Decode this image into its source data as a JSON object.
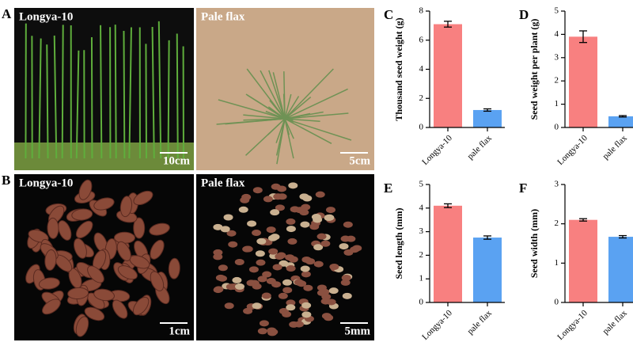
{
  "photo_panels": [
    {
      "panel": "A",
      "left_label": "Longya-10",
      "right_label": "Pale flax",
      "left_scale": "10cm",
      "right_scale": "5cm"
    },
    {
      "panel": "B",
      "left_label": "Longya-10",
      "right_label": "Pale flax",
      "left_scale": "1cm",
      "right_scale": "5mm"
    }
  ],
  "chart_data": [
    {
      "type": "bar",
      "panel": "C",
      "y_label": "Thousand seed weight (g)",
      "categories": [
        "Longya-10",
        "pale flax"
      ],
      "values": [
        7.1,
        1.2
      ],
      "errors": [
        0.2,
        0.08
      ],
      "colors": [
        "#f88080",
        "#5aa2f2"
      ],
      "ylim": [
        0,
        8
      ],
      "yticks": [
        0,
        2,
        4,
        6,
        8
      ]
    },
    {
      "type": "bar",
      "panel": "D",
      "y_label": "Seed weight per plant (g)",
      "categories": [
        "Longya-10",
        "pale flax"
      ],
      "values": [
        3.9,
        0.48
      ],
      "errors": [
        0.25,
        0.03
      ],
      "colors": [
        "#f88080",
        "#5aa2f2"
      ],
      "ylim": [
        0,
        5
      ],
      "yticks": [
        0,
        1,
        2,
        3,
        4,
        5
      ]
    },
    {
      "type": "bar",
      "panel": "E",
      "y_label": "Seed length (mm)",
      "categories": [
        "Longya-10",
        "pale flax"
      ],
      "values": [
        4.1,
        2.75
      ],
      "errors": [
        0.08,
        0.07
      ],
      "colors": [
        "#f88080",
        "#5aa2f2"
      ],
      "ylim": [
        0,
        5
      ],
      "yticks": [
        0,
        1,
        2,
        3,
        4,
        5
      ]
    },
    {
      "type": "bar",
      "panel": "F",
      "y_label": "Seed width (mm)",
      "categories": [
        "Longya-10",
        "pale flax"
      ],
      "values": [
        2.1,
        1.67
      ],
      "errors": [
        0.03,
        0.03
      ],
      "colors": [
        "#f88080",
        "#5aa2f2"
      ],
      "ylim": [
        0,
        3
      ],
      "yticks": [
        0,
        1,
        2,
        3
      ]
    }
  ]
}
